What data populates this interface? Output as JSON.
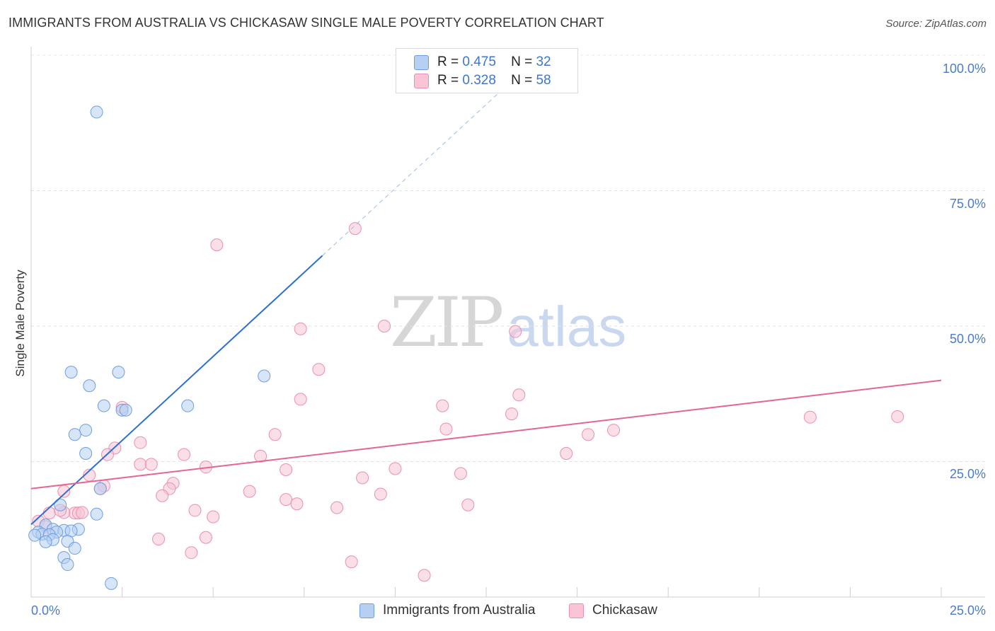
{
  "header": {
    "title": "IMMIGRANTS FROM AUSTRALIA VS CHICKASAW SINGLE MALE POVERTY CORRELATION CHART",
    "source": "Source: ZipAtlas.com"
  },
  "watermark": {
    "zip": "ZIP",
    "atlas": "atlas"
  },
  "legend": {
    "r_label": "R =",
    "n_label": "N =",
    "series": [
      {
        "r": "0.475",
        "n": "32"
      },
      {
        "r": "0.328",
        "n": "58"
      }
    ]
  },
  "colors": {
    "australia_fill": "#b7cff2",
    "australia_stroke": "#6e9ee0",
    "australia_line": "#2d6fd0",
    "chickasaw_fill": "#f8c4d6",
    "chickasaw_stroke": "#e98fb0",
    "chickasaw_line": "#e3678f",
    "tick_text": "#4a7cc9"
  },
  "chart_data": {
    "type": "scatter",
    "title": "IMMIGRANTS FROM AUSTRALIA VS CHICKASAW SINGLE MALE POVERTY CORRELATION CHART",
    "xlabel": "",
    "ylabel": "Single Male Poverty",
    "xlim": [
      0,
      25
    ],
    "ylim": [
      0,
      100
    ],
    "x_tick_labels": [
      "0.0%",
      "25.0%"
    ],
    "y_ticks": [
      {
        "value": 25,
        "label": "25.0%"
      },
      {
        "value": 50,
        "label": "50.0%"
      },
      {
        "value": 75,
        "label": "75.0%"
      },
      {
        "value": 100,
        "label": "100.0%"
      }
    ],
    "series": [
      {
        "name": "Immigrants from Australia",
        "r": 0.475,
        "n": 32,
        "trend": {
          "x0": 0,
          "y0": 13.4,
          "x1": 8.0,
          "y1": 63.0,
          "dash_to_x": 13.0,
          "dash_to_y": 94.0
        },
        "points": [
          [
            1.8,
            89.5
          ],
          [
            1.1,
            41.5
          ],
          [
            2.4,
            41.5
          ],
          [
            6.4,
            40.8
          ],
          [
            1.6,
            39.0
          ],
          [
            2.0,
            35.3
          ],
          [
            4.3,
            35.3
          ],
          [
            2.5,
            34.5
          ],
          [
            2.6,
            34.5
          ],
          [
            1.5,
            30.8
          ],
          [
            1.2,
            30.0
          ],
          [
            1.5,
            26.5
          ],
          [
            1.9,
            20.0
          ],
          [
            0.8,
            17.0
          ],
          [
            1.8,
            15.3
          ],
          [
            0.4,
            13.3
          ],
          [
            0.6,
            12.5
          ],
          [
            1.3,
            12.5
          ],
          [
            0.2,
            12.0
          ],
          [
            0.9,
            12.3
          ],
          [
            0.7,
            12.0
          ],
          [
            0.3,
            11.6
          ],
          [
            0.5,
            11.5
          ],
          [
            1.1,
            12.2
          ],
          [
            0.6,
            10.6
          ],
          [
            0.4,
            10.2
          ],
          [
            1.0,
            10.3
          ],
          [
            0.1,
            11.4
          ],
          [
            1.2,
            9.0
          ],
          [
            0.9,
            7.3
          ],
          [
            1.0,
            6.0
          ],
          [
            2.2,
            2.5
          ]
        ]
      },
      {
        "name": "Chickasaw",
        "r": 0.328,
        "n": 58,
        "trend": {
          "x0": 0,
          "y0": 20.0,
          "x1": 25.0,
          "y1": 40.0
        },
        "points": [
          [
            8.9,
            68.0
          ],
          [
            5.1,
            65.0
          ],
          [
            9.7,
            50.0
          ],
          [
            7.4,
            49.5
          ],
          [
            13.3,
            49.0
          ],
          [
            7.9,
            42.0
          ],
          [
            7.4,
            36.5
          ],
          [
            13.4,
            37.3
          ],
          [
            11.3,
            35.3
          ],
          [
            2.5,
            35.0
          ],
          [
            13.2,
            33.8
          ],
          [
            21.4,
            33.2
          ],
          [
            23.8,
            33.3
          ],
          [
            11.4,
            31.0
          ],
          [
            16.0,
            30.8
          ],
          [
            6.7,
            30.0
          ],
          [
            15.3,
            30.0
          ],
          [
            3.0,
            28.5
          ],
          [
            2.3,
            27.5
          ],
          [
            2.1,
            26.3
          ],
          [
            4.2,
            26.3
          ],
          [
            6.3,
            26.0
          ],
          [
            14.7,
            26.5
          ],
          [
            3.0,
            24.5
          ],
          [
            3.3,
            24.5
          ],
          [
            4.8,
            24.0
          ],
          [
            7.0,
            23.5
          ],
          [
            10.0,
            23.7
          ],
          [
            11.8,
            22.8
          ],
          [
            1.6,
            22.5
          ],
          [
            9.1,
            22.0
          ],
          [
            3.9,
            21.0
          ],
          [
            2.0,
            20.5
          ],
          [
            1.9,
            20.0
          ],
          [
            3.8,
            20.0
          ],
          [
            0.9,
            19.5
          ],
          [
            6.0,
            19.5
          ],
          [
            3.6,
            18.7
          ],
          [
            9.6,
            19.0
          ],
          [
            7.0,
            18.0
          ],
          [
            7.3,
            17.2
          ],
          [
            12.0,
            17.0
          ],
          [
            8.4,
            16.5
          ],
          [
            4.5,
            16.0
          ],
          [
            0.5,
            15.5
          ],
          [
            1.2,
            15.5
          ],
          [
            1.3,
            15.5
          ],
          [
            1.4,
            15.6
          ],
          [
            0.9,
            15.6
          ],
          [
            5.0,
            14.8
          ],
          [
            0.2,
            14.0
          ],
          [
            4.8,
            11.0
          ],
          [
            3.5,
            10.7
          ],
          [
            4.4,
            8.2
          ],
          [
            8.8,
            6.5
          ],
          [
            10.8,
            4.0
          ],
          [
            0.4,
            13.0
          ],
          [
            0.8,
            16.0
          ]
        ]
      }
    ]
  },
  "bottom_legend": {
    "items": [
      {
        "label": "Immigrants from Australia"
      },
      {
        "label": "Chickasaw"
      }
    ]
  }
}
